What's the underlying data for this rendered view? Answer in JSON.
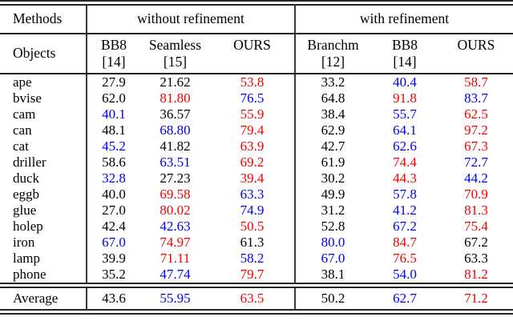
{
  "table": {
    "header": {
      "methods_label": "Methods",
      "objects_label": "Objects",
      "group_without": "without refinement",
      "group_with": "with refinement",
      "columns": [
        {
          "name": "BB8",
          "ref": "[14]"
        },
        {
          "name": "Seamless",
          "ref": "[15]"
        },
        {
          "name": "OURS",
          "ref": ""
        },
        {
          "name": "Branchm",
          "ref": "[12]"
        },
        {
          "name": "BB8",
          "ref": "[14]"
        },
        {
          "name": "OURS",
          "ref": ""
        }
      ]
    },
    "rows": [
      {
        "object": "ape",
        "values": [
          "27.9",
          "21.62",
          "53.8",
          "33.2",
          "40.4",
          "58.7"
        ],
        "colors": [
          "black",
          "black",
          "red",
          "black",
          "blue",
          "red"
        ]
      },
      {
        "object": "bvise",
        "values": [
          "62.0",
          "81.80",
          "76.5",
          "64.8",
          "91.8",
          "83.7"
        ],
        "colors": [
          "black",
          "red",
          "blue",
          "black",
          "red",
          "blue"
        ]
      },
      {
        "object": "cam",
        "values": [
          "40.1",
          "36.57",
          "55.9",
          "38.4",
          "55.7",
          "62.5"
        ],
        "colors": [
          "blue",
          "black",
          "red",
          "black",
          "blue",
          "red"
        ]
      },
      {
        "object": "can",
        "values": [
          "48.1",
          "68.80",
          "79.4",
          "62.9",
          "64.1",
          "97.2"
        ],
        "colors": [
          "black",
          "blue",
          "red",
          "black",
          "blue",
          "red"
        ]
      },
      {
        "object": "cat",
        "values": [
          "45.2",
          "41.82",
          "63.9",
          "42.7",
          "62.6",
          "67.3"
        ],
        "colors": [
          "blue",
          "black",
          "red",
          "black",
          "blue",
          "red"
        ]
      },
      {
        "object": "driller",
        "values": [
          "58.6",
          "63.51",
          "69.2",
          "61.9",
          "74.4",
          "72.7"
        ],
        "colors": [
          "black",
          "blue",
          "red",
          "black",
          "red",
          "blue"
        ]
      },
      {
        "object": "duck",
        "values": [
          "32.8",
          "27.23",
          "39.4",
          "30.2",
          "44.3",
          "44.2"
        ],
        "colors": [
          "blue",
          "black",
          "red",
          "black",
          "red",
          "blue"
        ]
      },
      {
        "object": "eggb",
        "values": [
          "40.0",
          "69.58",
          "63.3",
          "49.9",
          "57.8",
          "70.9"
        ],
        "colors": [
          "black",
          "red",
          "blue",
          "black",
          "blue",
          "red"
        ]
      },
      {
        "object": "glue",
        "values": [
          "27.0",
          "80.02",
          "74.9",
          "31.2",
          "41.2",
          "81.3"
        ],
        "colors": [
          "black",
          "red",
          "blue",
          "black",
          "blue",
          "red"
        ]
      },
      {
        "object": "holep",
        "values": [
          "42.4",
          "42.63",
          "50.5",
          "52.8",
          "67.2",
          "75.4"
        ],
        "colors": [
          "black",
          "blue",
          "red",
          "black",
          "blue",
          "red"
        ]
      },
      {
        "object": "iron",
        "values": [
          "67.0",
          "74.97",
          "61.3",
          "80.0",
          "84.7",
          "67.2"
        ],
        "colors": [
          "blue",
          "red",
          "black",
          "blue",
          "red",
          "black"
        ]
      },
      {
        "object": "lamp",
        "values": [
          "39.9",
          "71.11",
          "58.2",
          "67.0",
          "76.5",
          "63.3"
        ],
        "colors": [
          "black",
          "red",
          "blue",
          "blue",
          "red",
          "black"
        ]
      },
      {
        "object": "phone",
        "values": [
          "35.2",
          "47.74",
          "79.7",
          "38.1",
          "54.0",
          "81.2"
        ],
        "colors": [
          "black",
          "blue",
          "red",
          "black",
          "blue",
          "red"
        ]
      }
    ],
    "average": {
      "object": "Average",
      "values": [
        "43.6",
        "55.95",
        "63.5",
        "50.2",
        "62.7",
        "71.2"
      ],
      "colors": [
        "black",
        "blue",
        "red",
        "black",
        "blue",
        "red"
      ]
    }
  },
  "colors": {
    "black": "#000000",
    "red": "#f40000",
    "blue": "#0000f0"
  }
}
